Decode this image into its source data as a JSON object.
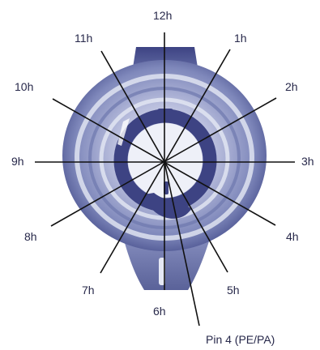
{
  "colors": {
    "connector_dark": "#3d4383",
    "connector_mid": "#6e77ae",
    "connector_light": "#c6cae4",
    "connector_pale": "#e5e8f4",
    "line": "#111111",
    "text": "#27284a"
  },
  "clock_labels": {
    "h12": "12h",
    "h1": "1h",
    "h2": "2h",
    "h3": "3h",
    "h4": "4h",
    "h5": "5h",
    "h6": "6h",
    "h7": "7h",
    "h8": "8h",
    "h9": "9h",
    "h10": "10h",
    "h11": "11h"
  },
  "pin_label": "Pin 4 (PE/PA)"
}
